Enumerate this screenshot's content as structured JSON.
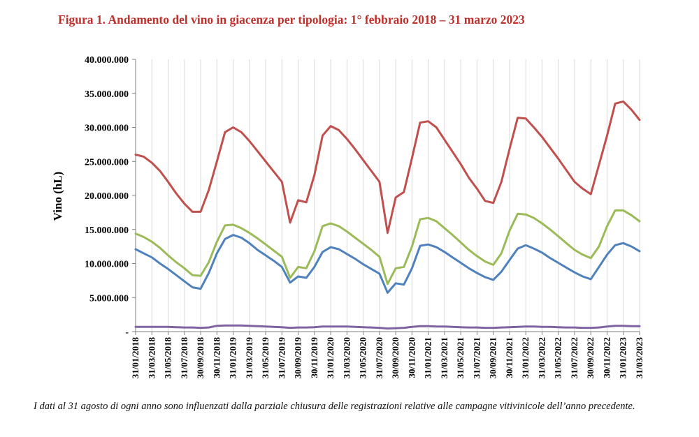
{
  "title": "Figura 1. Andamento del vino in giacenza per tipologia: 1° febbraio 2018 – 31 marzo 2023",
  "caption": "I dati al 31 agosto di ogni anno sono influenzati dalla parziale chiusura delle registrazioni relative alle campagne vitivinicole dell’anno precedente.",
  "chart_data": {
    "type": "line",
    "title": "Figura 1. Andamento del vino in giacenza per tipologia: 1° febbraio 2018 – 31 marzo 2023",
    "xlabel": "",
    "ylabel": "Vino (hL)",
    "ylim": [
      0,
      40000000
    ],
    "yticks": [
      {
        "value": 0,
        "label": "-"
      },
      {
        "value": 5000000,
        "label": "5.000.000"
      },
      {
        "value": 10000000,
        "label": "10.000.000"
      },
      {
        "value": 15000000,
        "label": "15.000.000"
      },
      {
        "value": 20000000,
        "label": "20.000.000"
      },
      {
        "value": 25000000,
        "label": "25.000.000"
      },
      {
        "value": 30000000,
        "label": "30.000.000"
      },
      {
        "value": 35000000,
        "label": "35.000.000"
      },
      {
        "value": 40000000,
        "label": "40.000.000"
      }
    ],
    "xtick_labels": [
      "31/01/2018",
      "31/03/2018",
      "31/05/2018",
      "31/07/2018",
      "30/09/2018",
      "30/11/2018",
      "31/01/2019",
      "31/03/2019",
      "31/05/2019",
      "31/07/2019",
      "30/09/2019",
      "30/11/2019",
      "31/01/2020",
      "31/03/2020",
      "31/05/2020",
      "31/07/2020",
      "30/09/2020",
      "30/11/2020",
      "31/01/2021",
      "31/03/2021",
      "31/05/2021",
      "31/07/2021",
      "30/09/2021",
      "30/11/2021",
      "31/01/2022",
      "31/03/2022",
      "31/05/2022",
      "31/07/2022",
      "30/09/2022",
      "30/11/2022",
      "31/01/2023",
      "31/03/2023"
    ],
    "grid": "vertical",
    "legend": "none",
    "x": [
      "31/01/2018",
      "28/02/2018",
      "31/03/2018",
      "30/04/2018",
      "31/05/2018",
      "30/06/2018",
      "31/07/2018",
      "31/08/2018",
      "30/09/2018",
      "31/10/2018",
      "30/11/2018",
      "31/12/2018",
      "31/01/2019",
      "28/02/2019",
      "31/03/2019",
      "30/04/2019",
      "31/05/2019",
      "30/06/2019",
      "31/07/2019",
      "31/08/2019",
      "30/09/2019",
      "31/10/2019",
      "30/11/2019",
      "31/12/2019",
      "31/01/2020",
      "29/02/2020",
      "31/03/2020",
      "30/04/2020",
      "31/05/2020",
      "30/06/2020",
      "31/07/2020",
      "31/08/2020",
      "30/09/2020",
      "31/10/2020",
      "30/11/2020",
      "31/12/2020",
      "31/01/2021",
      "28/02/2021",
      "31/03/2021",
      "30/04/2021",
      "31/05/2021",
      "30/06/2021",
      "31/07/2021",
      "31/08/2021",
      "30/09/2021",
      "31/10/2021",
      "30/11/2021",
      "31/12/2021",
      "31/01/2022",
      "28/02/2022",
      "31/03/2022",
      "30/04/2022",
      "31/05/2022",
      "30/06/2022",
      "31/07/2022",
      "31/08/2022",
      "30/09/2022",
      "31/10/2022",
      "30/11/2022",
      "31/12/2022",
      "31/01/2023",
      "28/02/2023",
      "31/03/2023"
    ],
    "series": [
      {
        "color": "#c0504d",
        "values": [
          26000000,
          25700000,
          24800000,
          23600000,
          22000000,
          20300000,
          18800000,
          17600000,
          17600000,
          20800000,
          25000000,
          29300000,
          30000000,
          29300000,
          28000000,
          26500000,
          25000000,
          23500000,
          22000000,
          16000000,
          19300000,
          19000000,
          23000000,
          28800000,
          30200000,
          29600000,
          28300000,
          26800000,
          25200000,
          23600000,
          22000000,
          14500000,
          19700000,
          20500000,
          25500000,
          30700000,
          30900000,
          30000000,
          28200000,
          26400000,
          24600000,
          22600000,
          21000000,
          19200000,
          18900000,
          22000000,
          26800000,
          31400000,
          31300000,
          30000000,
          28600000,
          27000000,
          25400000,
          23700000,
          22000000,
          21000000,
          20200000,
          24500000,
          28800000,
          33500000,
          33800000,
          32600000,
          31100000
        ]
      },
      {
        "color": "#9bbb59",
        "values": [
          14400000,
          13900000,
          13200000,
          12300000,
          11200000,
          10200000,
          9300000,
          8300000,
          8200000,
          10200000,
          13200000,
          15600000,
          15700000,
          15200000,
          14500000,
          13700000,
          12800000,
          11900000,
          11000000,
          7900000,
          9500000,
          9300000,
          11800000,
          15500000,
          15900000,
          15500000,
          14700000,
          13800000,
          12900000,
          12000000,
          11000000,
          7000000,
          9300000,
          9500000,
          12500000,
          16500000,
          16700000,
          16200000,
          15200000,
          14200000,
          13100000,
          12000000,
          11100000,
          10300000,
          9800000,
          11500000,
          14800000,
          17300000,
          17200000,
          16700000,
          15900000,
          15000000,
          14000000,
          13000000,
          12000000,
          11300000,
          10800000,
          12500000,
          15500000,
          17800000,
          17800000,
          17100000,
          16200000
        ]
      },
      {
        "color": "#4f81bd",
        "values": [
          12100000,
          11500000,
          10900000,
          10000000,
          9200000,
          8300000,
          7400000,
          6500000,
          6300000,
          8600000,
          11500000,
          13600000,
          14200000,
          13800000,
          13000000,
          12000000,
          11200000,
          10400000,
          9500000,
          7200000,
          8100000,
          7900000,
          9500000,
          11700000,
          12400000,
          12100000,
          11400000,
          10700000,
          9900000,
          9200000,
          8500000,
          5700000,
          7100000,
          6900000,
          9300000,
          12600000,
          12800000,
          12400000,
          11700000,
          10900000,
          10100000,
          9300000,
          8600000,
          8000000,
          7600000,
          8800000,
          10500000,
          12200000,
          12700000,
          12200000,
          11600000,
          10800000,
          10100000,
          9400000,
          8700000,
          8100000,
          7700000,
          9500000,
          11300000,
          12700000,
          13000000,
          12500000,
          11800000
        ]
      },
      {
        "color": "#8064a2",
        "values": [
          700000,
          700000,
          700000,
          700000,
          700000,
          650000,
          600000,
          600000,
          550000,
          600000,
          850000,
          900000,
          900000,
          900000,
          850000,
          800000,
          750000,
          700000,
          650000,
          550000,
          600000,
          600000,
          650000,
          750000,
          750000,
          750000,
          750000,
          700000,
          650000,
          600000,
          550000,
          450000,
          500000,
          550000,
          700000,
          800000,
          800000,
          750000,
          750000,
          700000,
          650000,
          600000,
          600000,
          550000,
          550000,
          600000,
          650000,
          700000,
          750000,
          750000,
          700000,
          700000,
          650000,
          600000,
          600000,
          550000,
          550000,
          600000,
          750000,
          850000,
          850000,
          800000,
          800000
        ]
      }
    ]
  }
}
